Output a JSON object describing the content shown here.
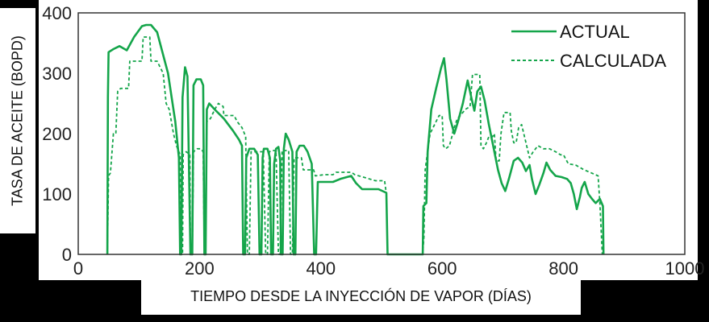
{
  "colors": {
    "series": "#14a54a",
    "axis": "#333333",
    "panel": "#ffffff",
    "background": "#000000"
  },
  "chart_data": {
    "type": "line",
    "title": "",
    "xlabel": "TIEMPO DESDE LA INYECCIÓN DE VAPOR (DÍAS)",
    "ylabel": "TASA DE ACEITE  (BOPD)",
    "xlim": [
      0,
      1000
    ],
    "ylim": [
      0,
      400
    ],
    "xticks": [
      0,
      200,
      400,
      600,
      800,
      1000
    ],
    "yticks": [
      0,
      100,
      200,
      300,
      400
    ],
    "legend_position": "top-right",
    "grid": false,
    "series": [
      {
        "name": "ACTUAL",
        "style": "solid",
        "points": [
          [
            48,
            0
          ],
          [
            49,
            260
          ],
          [
            50,
            335
          ],
          [
            58,
            340
          ],
          [
            68,
            345
          ],
          [
            80,
            338
          ],
          [
            92,
            360
          ],
          [
            105,
            378
          ],
          [
            112,
            380
          ],
          [
            120,
            380
          ],
          [
            130,
            368
          ],
          [
            148,
            300
          ],
          [
            160,
            220
          ],
          [
            164,
            180
          ],
          [
            166,
            160
          ],
          [
            168,
            0
          ],
          [
            170,
            0
          ],
          [
            172,
            260
          ],
          [
            176,
            310
          ],
          [
            180,
            295
          ],
          [
            185,
            0
          ],
          [
            188,
            0
          ],
          [
            190,
            280
          ],
          [
            195,
            290
          ],
          [
            202,
            290
          ],
          [
            206,
            280
          ],
          [
            208,
            0
          ],
          [
            210,
            0
          ],
          [
            212,
            240
          ],
          [
            216,
            250
          ],
          [
            225,
            240
          ],
          [
            240,
            225
          ],
          [
            255,
            205
          ],
          [
            265,
            190
          ],
          [
            270,
            180
          ],
          [
            272,
            0
          ],
          [
            275,
            0
          ],
          [
            277,
            160
          ],
          [
            282,
            175
          ],
          [
            290,
            175
          ],
          [
            296,
            165
          ],
          [
            299,
            0
          ],
          [
            302,
            0
          ],
          [
            304,
            160
          ],
          [
            306,
            175
          ],
          [
            312,
            175
          ],
          [
            316,
            160
          ],
          [
            318,
            0
          ],
          [
            321,
            0
          ],
          [
            323,
            150
          ],
          [
            326,
            175
          ],
          [
            330,
            178
          ],
          [
            333,
            155
          ],
          [
            334,
            0
          ],
          [
            337,
            0
          ],
          [
            339,
            175
          ],
          [
            342,
            200
          ],
          [
            347,
            190
          ],
          [
            353,
            170
          ],
          [
            355,
            0
          ],
          [
            358,
            0
          ],
          [
            360,
            170
          ],
          [
            365,
            180
          ],
          [
            372,
            180
          ],
          [
            378,
            170
          ],
          [
            385,
            150
          ],
          [
            389,
            0
          ],
          [
            392,
            0
          ],
          [
            395,
            120
          ],
          [
            420,
            120
          ],
          [
            432,
            125
          ],
          [
            450,
            130
          ],
          [
            458,
            118
          ],
          [
            468,
            108
          ],
          [
            480,
            108
          ],
          [
            495,
            108
          ],
          [
            508,
            102
          ],
          [
            510,
            0
          ],
          [
            568,
            0
          ],
          [
            569,
            80
          ],
          [
            574,
            85
          ],
          [
            576,
            170
          ],
          [
            582,
            240
          ],
          [
            590,
            275
          ],
          [
            598,
            308
          ],
          [
            603,
            325
          ],
          [
            607,
            290
          ],
          [
            613,
            225
          ],
          [
            620,
            200
          ],
          [
            626,
            220
          ],
          [
            634,
            250
          ],
          [
            642,
            288
          ],
          [
            648,
            260
          ],
          [
            653,
            238
          ],
          [
            658,
            270
          ],
          [
            664,
            278
          ],
          [
            670,
            255
          ],
          [
            677,
            215
          ],
          [
            684,
            180
          ],
          [
            692,
            140
          ],
          [
            698,
            118
          ],
          [
            704,
            105
          ],
          [
            710,
            125
          ],
          [
            718,
            155
          ],
          [
            725,
            160
          ],
          [
            732,
            152
          ],
          [
            738,
            138
          ],
          [
            744,
            148
          ],
          [
            748,
            125
          ],
          [
            754,
            100
          ],
          [
            760,
            115
          ],
          [
            767,
            135
          ],
          [
            772,
            152
          ],
          [
            778,
            140
          ],
          [
            787,
            130
          ],
          [
            797,
            128
          ],
          [
            806,
            125
          ],
          [
            812,
            118
          ],
          [
            817,
            100
          ],
          [
            822,
            75
          ],
          [
            827,
            95
          ],
          [
            830,
            110
          ],
          [
            835,
            120
          ],
          [
            841,
            100
          ],
          [
            847,
            92
          ],
          [
            853,
            85
          ],
          [
            860,
            92
          ],
          [
            865,
            80
          ],
          [
            866,
            0
          ]
        ]
      },
      {
        "name": "CALCULADA",
        "style": "dashed",
        "points": [
          [
            48,
            0
          ],
          [
            50,
            130
          ],
          [
            53,
            135
          ],
          [
            58,
            200
          ],
          [
            62,
            200
          ],
          [
            65,
            270
          ],
          [
            70,
            275
          ],
          [
            77,
            275
          ],
          [
            83,
            275
          ],
          [
            85,
            320
          ],
          [
            95,
            320
          ],
          [
            105,
            320
          ],
          [
            107,
            360
          ],
          [
            118,
            360
          ],
          [
            120,
            320
          ],
          [
            125,
            320
          ],
          [
            130,
            320
          ],
          [
            135,
            310
          ],
          [
            140,
            300
          ],
          [
            145,
            250
          ],
          [
            150,
            240
          ],
          [
            157,
            200
          ],
          [
            162,
            180
          ],
          [
            168,
            165
          ],
          [
            169,
            0
          ],
          [
            172,
            0
          ],
          [
            173,
            165
          ],
          [
            178,
            170
          ],
          [
            184,
            165
          ],
          [
            185,
            0
          ],
          [
            188,
            0
          ],
          [
            190,
            170
          ],
          [
            196,
            175
          ],
          [
            202,
            175
          ],
          [
            206,
            170
          ],
          [
            208,
            0
          ],
          [
            210,
            0
          ],
          [
            212,
            220
          ],
          [
            218,
            225
          ],
          [
            225,
            240
          ],
          [
            231,
            250
          ],
          [
            239,
            245
          ],
          [
            240,
            230
          ],
          [
            247,
            230
          ],
          [
            257,
            230
          ],
          [
            262,
            220
          ],
          [
            270,
            210
          ],
          [
            276,
            195
          ],
          [
            279,
            0
          ],
          [
            282,
            0
          ],
          [
            285,
            170
          ],
          [
            295,
            170
          ],
          [
            305,
            170
          ],
          [
            309,
            0
          ],
          [
            312,
            0
          ],
          [
            315,
            170
          ],
          [
            320,
            172
          ],
          [
            326,
            172
          ],
          [
            330,
            0
          ],
          [
            333,
            0
          ],
          [
            336,
            172
          ],
          [
            342,
            172
          ],
          [
            347,
            172
          ],
          [
            350,
            0
          ],
          [
            353,
            0
          ],
          [
            356,
            160
          ],
          [
            362,
            160
          ],
          [
            368,
            160
          ],
          [
            371,
            140
          ],
          [
            380,
            140
          ],
          [
            388,
            140
          ],
          [
            391,
            130
          ],
          [
            405,
            132
          ],
          [
            420,
            132
          ],
          [
            425,
            136
          ],
          [
            450,
            136
          ],
          [
            456,
            132
          ],
          [
            470,
            128
          ],
          [
            480,
            125
          ],
          [
            490,
            122
          ],
          [
            505,
            122
          ],
          [
            508,
            100
          ],
          [
            510,
            0
          ],
          [
            568,
            0
          ],
          [
            570,
            30
          ],
          [
            572,
            140
          ],
          [
            580,
            200
          ],
          [
            585,
            210
          ],
          [
            595,
            230
          ],
          [
            600,
            230
          ],
          [
            602,
            180
          ],
          [
            606,
            175
          ],
          [
            612,
            180
          ],
          [
            616,
            195
          ],
          [
            618,
            205
          ],
          [
            625,
            225
          ],
          [
            630,
            230
          ],
          [
            638,
            240
          ],
          [
            646,
            245
          ],
          [
            650,
            298
          ],
          [
            656,
            298
          ],
          [
            662,
            298
          ],
          [
            664,
            180
          ],
          [
            668,
            175
          ],
          [
            673,
            185
          ],
          [
            677,
            195
          ],
          [
            683,
            195
          ],
          [
            686,
            200
          ],
          [
            689,
            155
          ],
          [
            694,
            155
          ],
          [
            697,
            200
          ],
          [
            702,
            235
          ],
          [
            712,
            235
          ],
          [
            714,
            205
          ],
          [
            718,
            185
          ],
          [
            722,
            185
          ],
          [
            726,
            210
          ],
          [
            731,
            215
          ],
          [
            744,
            160
          ],
          [
            750,
            170
          ],
          [
            758,
            180
          ],
          [
            767,
            175
          ],
          [
            777,
            175
          ],
          [
            787,
            170
          ],
          [
            795,
            165
          ],
          [
            800,
            165
          ],
          [
            808,
            150
          ],
          [
            820,
            148
          ],
          [
            834,
            140
          ],
          [
            846,
            135
          ],
          [
            857,
            130
          ],
          [
            860,
            85
          ],
          [
            864,
            0
          ]
        ]
      }
    ]
  }
}
